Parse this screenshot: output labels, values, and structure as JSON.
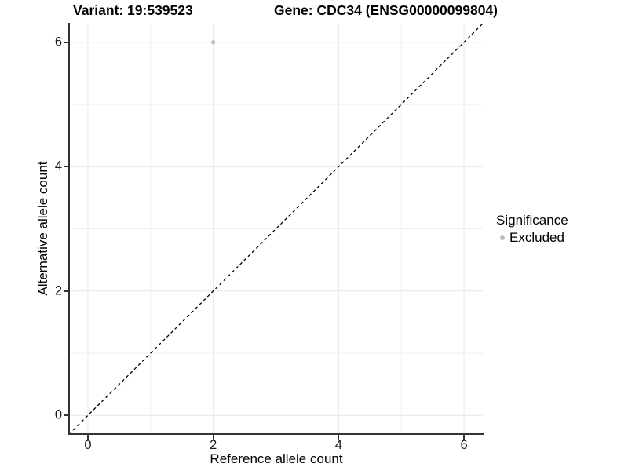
{
  "figure": {
    "title_left": "Variant: 19:539523",
    "title_right": "Gene: CDC34 (ENSG00000099804)"
  },
  "chart_data": {
    "type": "scatter",
    "title": "Variant: 19:539523    Gene: CDC34 (ENSG00000099804)",
    "title_parts": {
      "variant": "Variant: 19:539523",
      "gene": "Gene: CDC34 (ENSG00000099804)"
    },
    "xlabel": "Reference allele count",
    "ylabel": "Alternative allele count",
    "xlim": [
      -0.3,
      6.3
    ],
    "ylim": [
      -0.3,
      6.3
    ],
    "xticks": [
      0,
      2,
      4,
      6
    ],
    "yticks": [
      0,
      2,
      4,
      6
    ],
    "x_minor_gridlines": [
      1,
      3,
      5
    ],
    "y_minor_gridlines": [
      1,
      3,
      5
    ],
    "grid": true,
    "legend_position": "right",
    "series": [
      {
        "name": "Excluded",
        "marker_color": "#bdbdbd",
        "points": [
          {
            "x": 2,
            "y": 6
          }
        ]
      }
    ],
    "reference_line": {
      "type": "identity",
      "slope": 1,
      "intercept": 0,
      "style": "dashed",
      "color": "#000000"
    },
    "legend": {
      "title": "Significance",
      "items": [
        {
          "label": "Excluded",
          "marker_color": "#bdbdbd"
        }
      ]
    }
  },
  "colors": {
    "background": "#ffffff",
    "axis_line": "#333333",
    "grid_major": "#e6e6e6",
    "grid_minor": "#efefef",
    "point": "#bdbdbd",
    "dashed_line": "#000000",
    "text": "#000000"
  }
}
